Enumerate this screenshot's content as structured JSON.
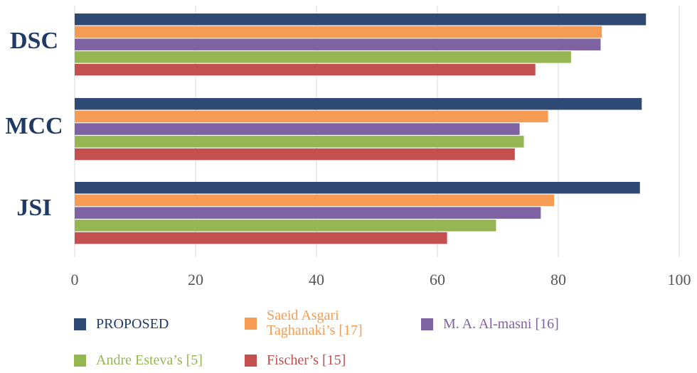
{
  "chart_data": {
    "type": "bar",
    "orientation": "horizontal",
    "categories": [
      "DSC",
      "MCC",
      "JSI"
    ],
    "series": [
      {
        "name": "PROPOSED",
        "color": "#2E4A74",
        "values": [
          94.5,
          93.8,
          93.5
        ]
      },
      {
        "name": "Saeid Asgari Taghanaki’s [17]",
        "color": "#F59B53",
        "values": [
          87.2,
          78.3,
          79.3
        ]
      },
      {
        "name": "M. A. Al-masni [16]",
        "color": "#7F62A2",
        "values": [
          87.0,
          73.6,
          77.1
        ]
      },
      {
        "name": "Andre Esteva’s [5]",
        "color": "#95B653",
        "values": [
          82.1,
          74.3,
          69.7
        ]
      },
      {
        "name": "Fischer’s [15]",
        "color": "#C44F4F",
        "values": [
          76.2,
          72.8,
          61.6
        ]
      }
    ],
    "xlim": [
      0,
      100
    ],
    "x_ticks": [
      0,
      20,
      40,
      60,
      80,
      100
    ],
    "tick_labels": [
      "0",
      "20",
      "40",
      "60",
      "80",
      "100"
    ],
    "gridlines": "vertical",
    "legend_position": "bottom"
  },
  "legend": {
    "items": [
      {
        "label": "PROPOSED",
        "color": "#2E4A74"
      },
      {
        "label": "Saeid Asgari\nTaghanaki’s [17]",
        "color": "#F59B53"
      },
      {
        "label": "M. A. Al-masni [16]",
        "color": "#7F62A2"
      },
      {
        "label": "Andre Esteva’s [5]",
        "color": "#95B653"
      },
      {
        "label": "Fischer’s [15]",
        "color": "#C44F4F"
      }
    ]
  },
  "colors": {
    "category_label": "#1F3A64",
    "tick_label": "#555555",
    "grid": "#D9D9D9",
    "legend_text_proposed": "#1F3A64",
    "legend_text_saeid": "#F59B53",
    "legend_text_almasni": "#7F62A2",
    "legend_text_esteva": "#95B653",
    "legend_text_fischer": "#C44F4F"
  }
}
